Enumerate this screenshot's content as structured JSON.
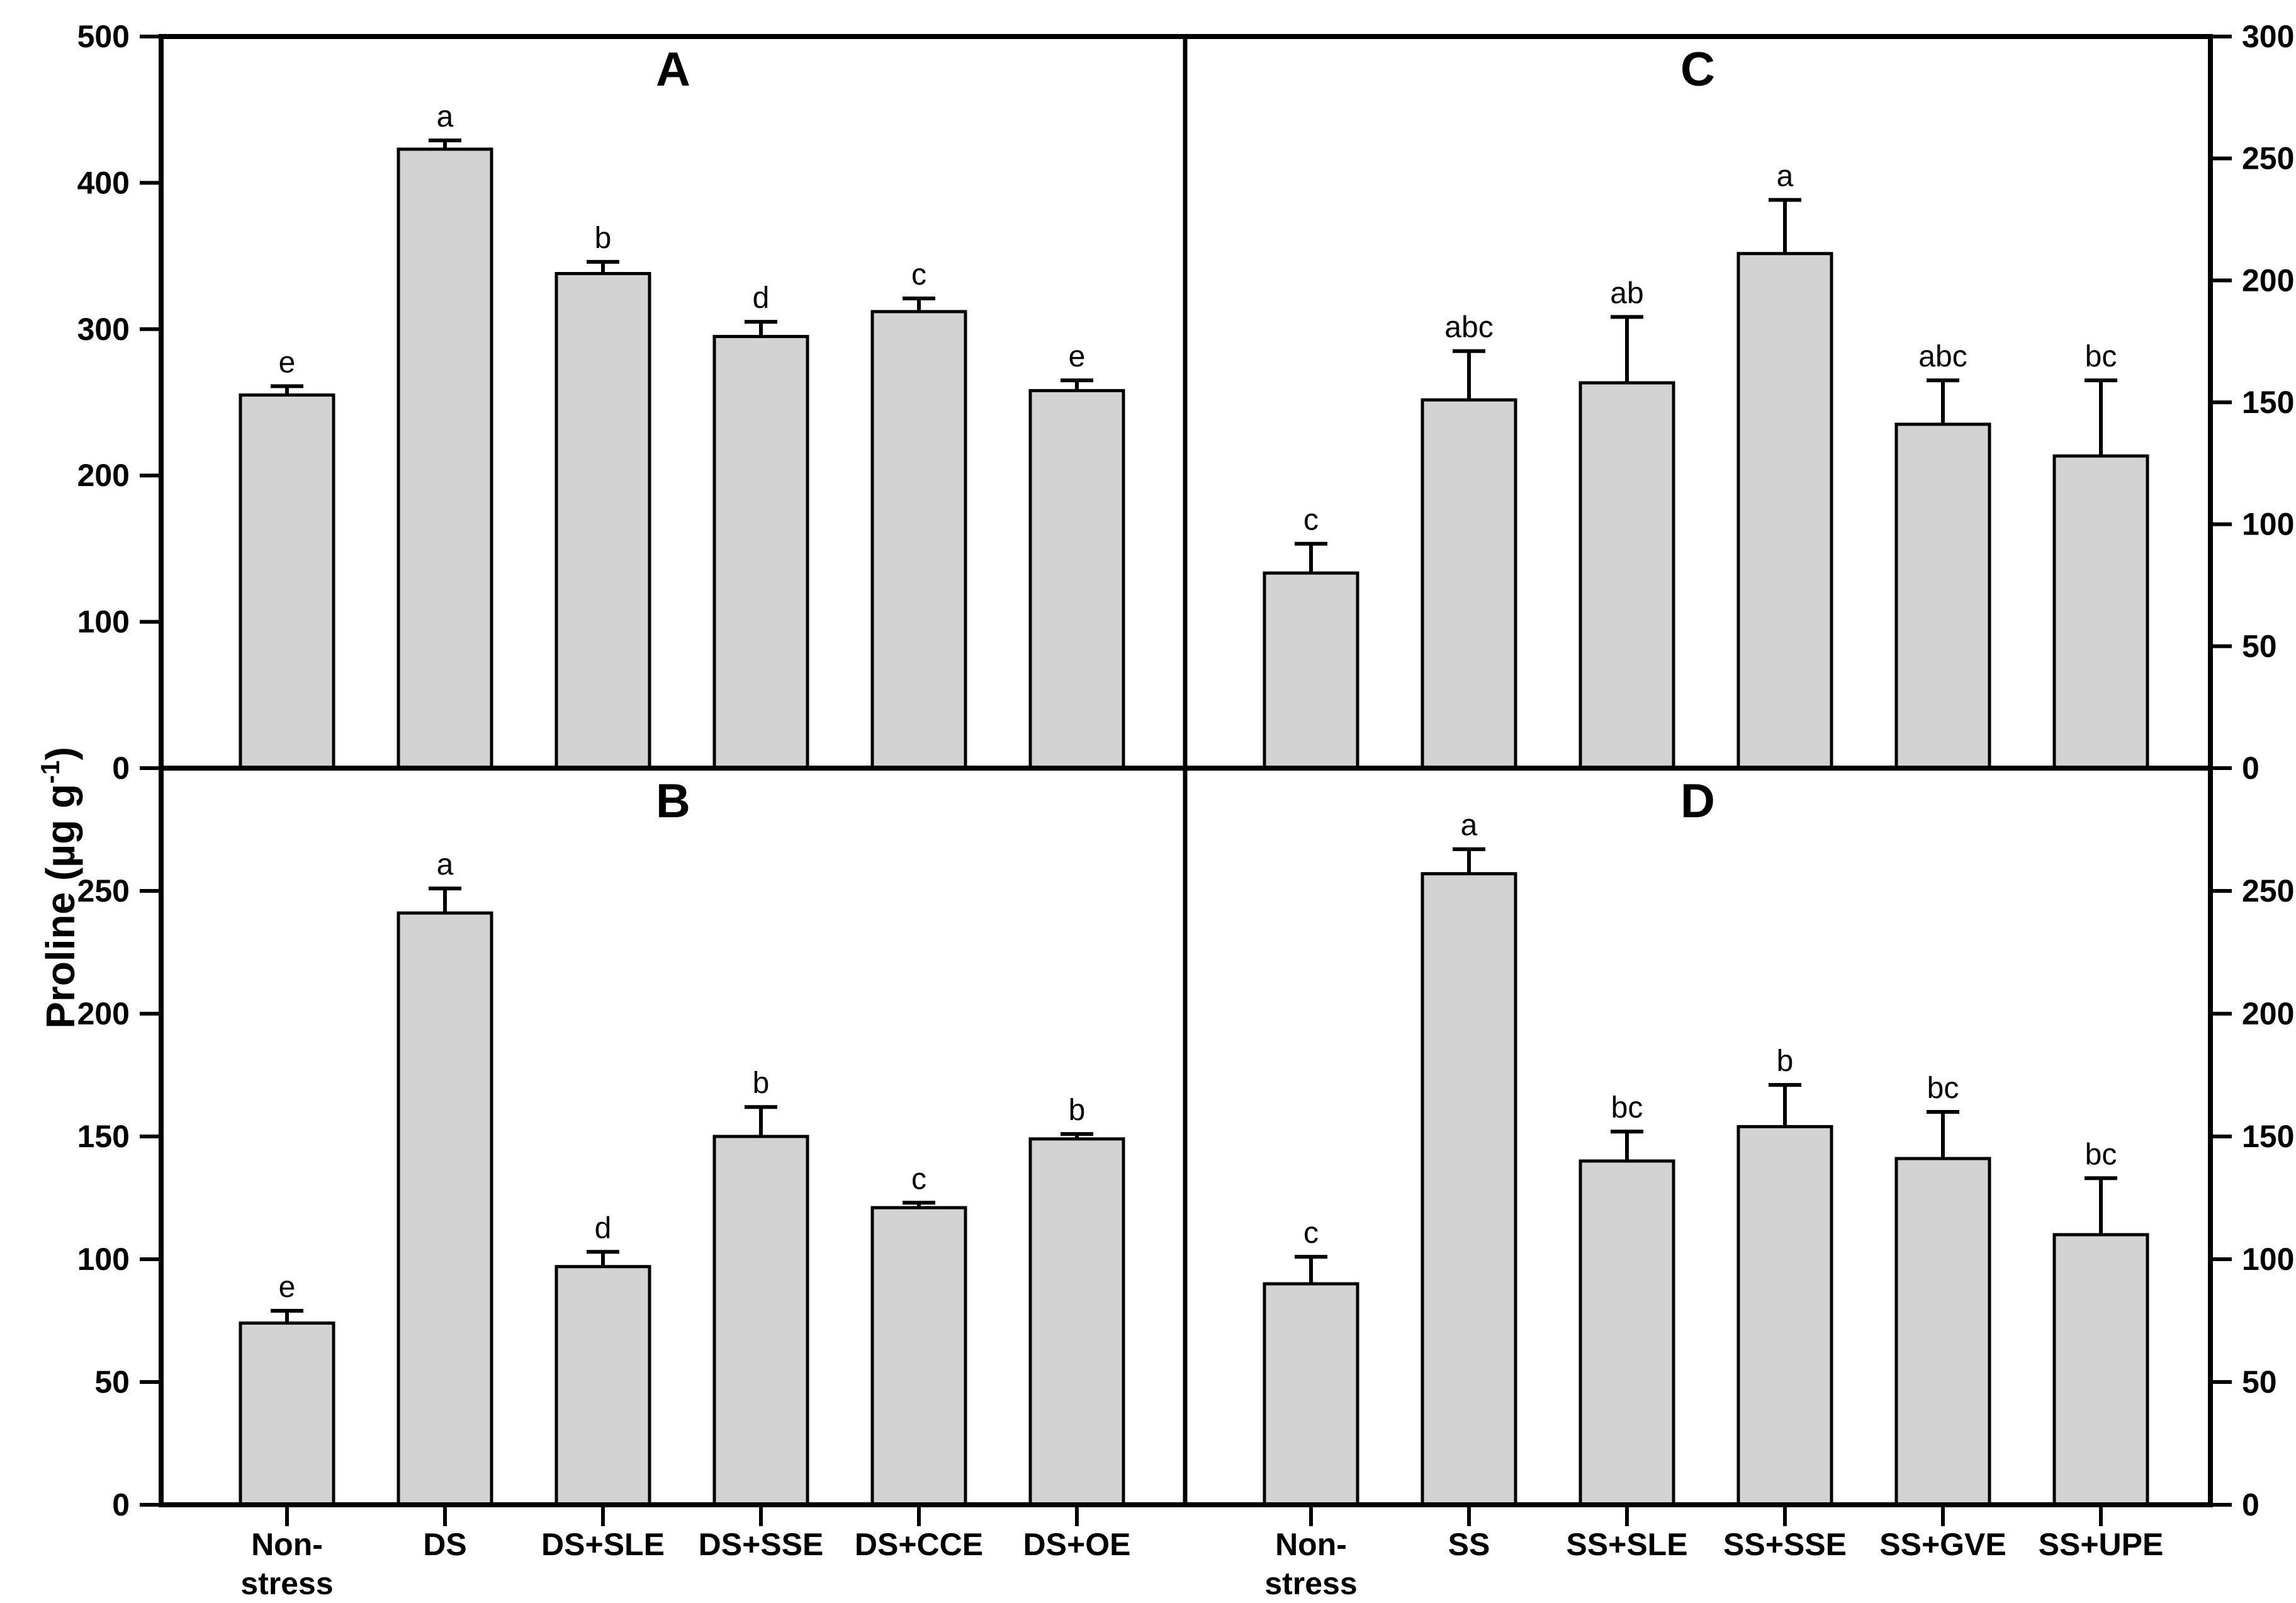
{
  "figure": {
    "y_axis_title": {
      "prefix": "Proline (µg g",
      "superscript": "-1",
      "suffix": ")"
    },
    "colors": {
      "bar_fill": "#d3d3d3",
      "line": "#000000",
      "background": "#ffffff"
    }
  },
  "chart_data": [
    {
      "type": "bar",
      "panel": "A",
      "position": "top-left",
      "categories": [
        "Non-stress",
        "DS",
        "DS+SLE",
        "DS+SSE",
        "DS+CCE",
        "DS+OE"
      ],
      "values": [
        255,
        423,
        338,
        295,
        312,
        258
      ],
      "errors": [
        6,
        6,
        8,
        10,
        9,
        7
      ],
      "sig_letters": [
        "e",
        "a",
        "b",
        "d",
        "c",
        "e"
      ],
      "ylim": [
        0,
        500
      ],
      "yticks": [
        0,
        100,
        200,
        300,
        400,
        500
      ],
      "tick_side": "left",
      "show_x_labels": false,
      "grid": false,
      "legend": "none"
    },
    {
      "type": "bar",
      "panel": "B",
      "position": "bottom-left",
      "categories": [
        "Non-\nstress",
        "DS",
        "DS+SLE",
        "DS+SSE",
        "DS+CCE",
        "DS+OE"
      ],
      "values": [
        74,
        241,
        97,
        150,
        121,
        149
      ],
      "errors": [
        5,
        10,
        6,
        12,
        2,
        2
      ],
      "sig_letters": [
        "e",
        "a",
        "d",
        "b",
        "c",
        "b"
      ],
      "ylim": [
        0,
        300
      ],
      "yticks": [
        0,
        50,
        100,
        150,
        200,
        250
      ],
      "tick_side": "left",
      "show_x_labels": true,
      "grid": false,
      "legend": "none"
    },
    {
      "type": "bar",
      "panel": "C",
      "position": "top-right",
      "categories": [
        "Non-stress",
        "SS",
        "SS+SLE",
        "SS+SSE",
        "SS+GVE",
        "SS+UPE"
      ],
      "values": [
        80,
        151,
        158,
        211,
        141,
        128
      ],
      "errors": [
        12,
        20,
        27,
        22,
        18,
        31
      ],
      "sig_letters": [
        "c",
        "abc",
        "ab",
        "a",
        "abc",
        "bc"
      ],
      "ylim": [
        0,
        300
      ],
      "yticks": [
        0,
        50,
        100,
        150,
        200,
        250,
        300
      ],
      "tick_side": "right",
      "show_x_labels": false,
      "grid": false,
      "legend": "none"
    },
    {
      "type": "bar",
      "panel": "D",
      "position": "bottom-right",
      "categories": [
        "Non-\nstress",
        "SS",
        "SS+SLE",
        "SS+SSE",
        "SS+GVE",
        "SS+UPE"
      ],
      "values": [
        90,
        257,
        140,
        154,
        141,
        110
      ],
      "errors": [
        11,
        10,
        12,
        17,
        19,
        23
      ],
      "sig_letters": [
        "c",
        "a",
        "bc",
        "b",
        "bc",
        "bc"
      ],
      "ylim": [
        0,
        300
      ],
      "yticks": [
        0,
        50,
        100,
        150,
        200,
        250
      ],
      "tick_side": "right",
      "show_x_labels": true,
      "grid": false,
      "legend": "none"
    }
  ]
}
